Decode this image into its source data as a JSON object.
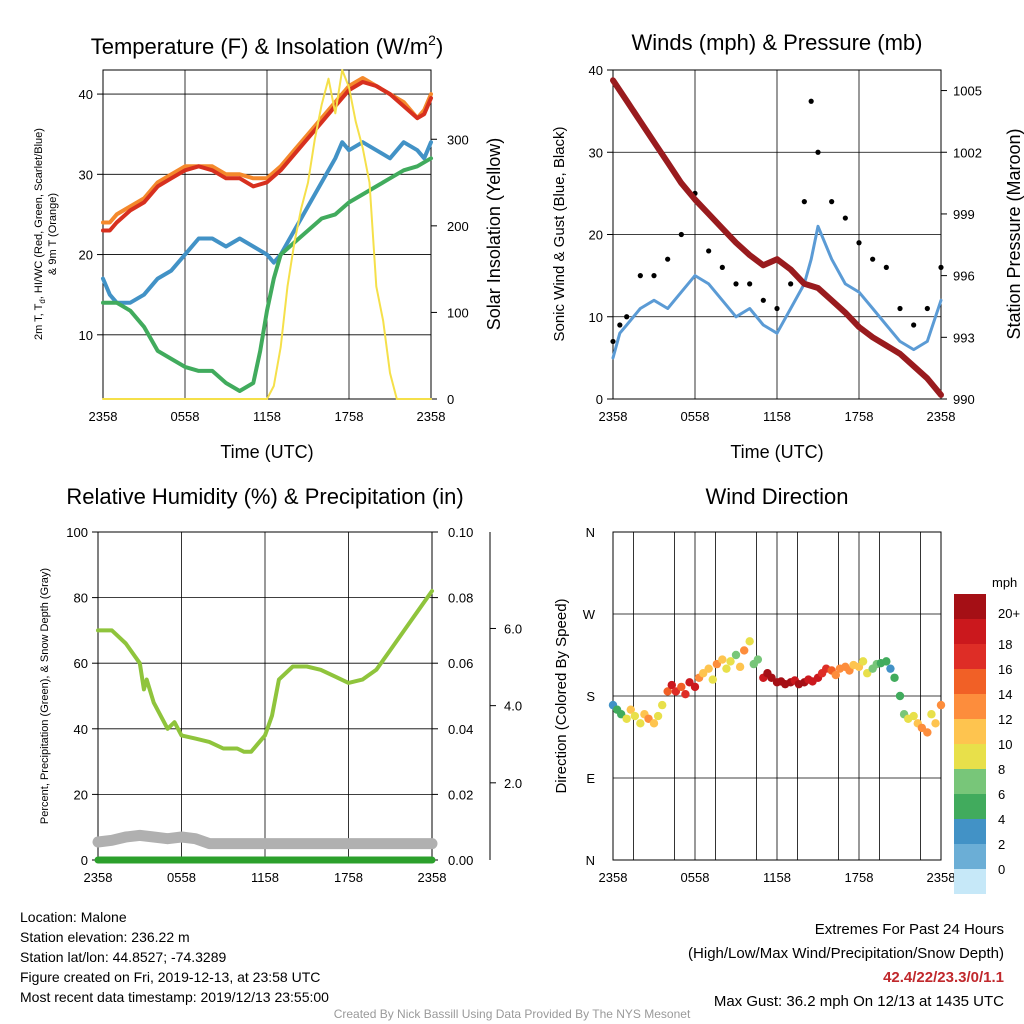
{
  "chart_data": [
    {
      "type": "line",
      "title": "Temperature (F) & Insolation (W/m",
      "title_sup": "2",
      "title_end": ")",
      "xlabel": "Time (UTC)",
      "ylabel": "2m T, T",
      "ylabel_sub": "d",
      "ylabel_rest": ", HI/WC (Red, Green, Scarlet/Blue)",
      "ylabel_line2": "& 9m T (Orange)",
      "ylabel_right": "Solar Insolation (Yellow)",
      "x_ticks": [
        "2358",
        "0558",
        "1158",
        "1758",
        "2358"
      ],
      "y_ticks": [
        "10",
        "20",
        "30",
        "40"
      ],
      "y2_ticks": [
        "0",
        "100",
        "200",
        "300"
      ],
      "ylim": [
        2,
        43
      ],
      "y2lim": [
        0,
        380
      ],
      "xlim": [
        0,
        24
      ],
      "grid": true,
      "series": [
        {
          "name": "9m T",
          "color": "#f4892c",
          "axis": "left",
          "x": [
            0,
            0.5,
            1,
            2,
            3,
            4,
            5,
            6,
            7,
            8,
            9,
            10,
            11,
            12,
            13,
            14,
            15,
            16,
            17,
            18,
            19,
            20,
            21,
            22,
            23,
            23.5,
            24
          ],
          "y": [
            24,
            24,
            25,
            26,
            27,
            29,
            30,
            31,
            31,
            31,
            30,
            30,
            29.5,
            29.5,
            31,
            33,
            35,
            37,
            39,
            41,
            42,
            41,
            40,
            39,
            37,
            38,
            40
          ]
        },
        {
          "name": "2m T",
          "color": "#d7301f",
          "axis": "left",
          "x": [
            0,
            0.5,
            1,
            2,
            3,
            4,
            5,
            6,
            7,
            8,
            9,
            10,
            11,
            12,
            13,
            14,
            15,
            16,
            17,
            18,
            19,
            20,
            21,
            22,
            23,
            23.5,
            24
          ],
          "y": [
            23,
            23,
            24,
            25.5,
            26.5,
            28.5,
            29.5,
            30.5,
            31,
            30.5,
            29.5,
            29.5,
            28.5,
            29,
            30.5,
            32.5,
            34.5,
            36.5,
            38.5,
            40.5,
            41.5,
            41,
            40,
            38.5,
            37,
            37.5,
            39.5
          ]
        },
        {
          "name": "Td",
          "color": "#4292c6",
          "axis": "left",
          "x": [
            0,
            0.5,
            1,
            2,
            3,
            4,
            5,
            6,
            7,
            8,
            9,
            10,
            11,
            12,
            12.5,
            13,
            14,
            15,
            16,
            17,
            17.5,
            18,
            19,
            20,
            21,
            22,
            23,
            23.5,
            24
          ],
          "y": [
            17,
            15,
            14,
            14,
            15,
            17,
            18,
            20,
            22,
            22,
            21,
            22,
            21,
            20,
            19,
            20,
            23,
            26,
            29,
            32,
            34,
            33,
            34,
            33,
            32,
            34,
            33,
            32,
            34
          ]
        },
        {
          "name": "HI/WC",
          "color": "#41ab5d",
          "axis": "left",
          "x": [
            0,
            0.5,
            1,
            2,
            3,
            4,
            5,
            6,
            7,
            8,
            9,
            10,
            10.5,
            11,
            11.5,
            12,
            12.5,
            13,
            14,
            15,
            16,
            17,
            18,
            19,
            20,
            21,
            22,
            23,
            24
          ],
          "y": [
            14,
            14,
            14,
            13,
            11,
            8,
            7,
            6,
            5.5,
            5.5,
            4,
            3,
            3.5,
            4,
            8,
            13,
            17,
            20,
            21.5,
            23,
            24.5,
            25,
            26.5,
            27.5,
            28.5,
            29.5,
            30.5,
            31,
            32
          ]
        },
        {
          "name": "Solar Insolation",
          "color": "#f5e04a",
          "axis": "right",
          "x": [
            0,
            12,
            12.5,
            13,
            13.5,
            14,
            14.5,
            15,
            15.5,
            16,
            16.5,
            17,
            17.5,
            18,
            18.5,
            19,
            19.5,
            20,
            20.5,
            21,
            21.5,
            22,
            24
          ],
          "y": [
            0,
            0,
            15,
            60,
            130,
            180,
            220,
            250,
            300,
            340,
            370,
            330,
            380,
            360,
            320,
            290,
            250,
            130,
            90,
            30,
            0,
            0,
            0
          ]
        }
      ]
    },
    {
      "type": "scatter",
      "title": "Winds (mph) & Pressure (mb)",
      "xlabel": "Time (UTC)",
      "ylabel": "Sonic Wind & Gust (Blue, Black)",
      "ylabel_right": "Station Pressure (Maroon)",
      "x_ticks": [
        "2358",
        "0558",
        "1158",
        "1758",
        "2358"
      ],
      "y_ticks": [
        "0",
        "10",
        "20",
        "30",
        "40"
      ],
      "y2_ticks": [
        "990",
        "993",
        "996",
        "999",
        "1002",
        "1005"
      ],
      "ylim": [
        0,
        40
      ],
      "y2lim": [
        990,
        1006
      ],
      "xlim": [
        0,
        24
      ],
      "grid": true,
      "max_gust": 36.2,
      "series": [
        {
          "name": "Sonic Wind",
          "color": "#5b9bd5",
          "x": [
            0,
            0.5,
            1,
            2,
            3,
            4,
            5,
            6,
            7,
            8,
            9,
            10,
            11,
            12,
            13,
            14,
            14.5,
            15,
            16,
            17,
            18,
            19,
            20,
            21,
            22,
            23,
            24
          ],
          "y": [
            5,
            8,
            9,
            11,
            12,
            11,
            13,
            15,
            14,
            12,
            10,
            11,
            9,
            8,
            11,
            14,
            17,
            21,
            17,
            14,
            13,
            11,
            9,
            7,
            6,
            7,
            12
          ]
        },
        {
          "name": "Gust",
          "color": "#000000",
          "x": [
            0,
            0.5,
            1,
            2,
            3,
            4,
            5,
            6,
            7,
            8,
            9,
            10,
            11,
            12,
            13,
            14,
            14.5,
            15,
            16,
            17,
            18,
            19,
            20,
            21,
            22,
            23,
            24
          ],
          "y": [
            7,
            9,
            10,
            15,
            15,
            17,
            20,
            25,
            18,
            16,
            14,
            14,
            12,
            11,
            14,
            24,
            36.2,
            30,
            24,
            22,
            19,
            17,
            16,
            11,
            9,
            11,
            16
          ]
        },
        {
          "name": "Station Pressure",
          "color": "#991b1e",
          "x": [
            0,
            1,
            2,
            3,
            4,
            5,
            6,
            7,
            8,
            9,
            10,
            11,
            12,
            13,
            14,
            15,
            16,
            17,
            18,
            19,
            20,
            21,
            22,
            23,
            24
          ],
          "y": [
            1005.5,
            1004.5,
            1003.5,
            1002.5,
            1001.5,
            1000.5,
            999.7,
            999,
            998.3,
            997.6,
            997,
            996.5,
            996.8,
            996.3,
            995.6,
            995.4,
            994.8,
            994.2,
            993.5,
            993,
            992.6,
            992.2,
            991.6,
            991,
            990.2
          ]
        }
      ]
    },
    {
      "type": "line",
      "title": "Relative Humidity (%) & Precipitation (in)",
      "ylabel": "Percent, Precipitation (Green), & Snow Depth (Gray)",
      "x_ticks": [
        "2358",
        "0558",
        "1158",
        "1758",
        "2358"
      ],
      "y_ticks": [
        "0",
        "20",
        "40",
        "60",
        "80",
        "100"
      ],
      "y2_ticks": [
        "0.00",
        "0.02",
        "0.04",
        "0.06",
        "0.08",
        "0.10"
      ],
      "y3_ticks": [
        "2.0",
        "4.0",
        "6.0"
      ],
      "ylim": [
        0,
        100
      ],
      "y2lim": [
        0,
        0.1
      ],
      "xlim": [
        0,
        24
      ],
      "grid": true,
      "series": [
        {
          "name": "Relative Humidity",
          "color": "#8fc43c",
          "x": [
            0,
            0.5,
            1,
            2,
            3,
            3.3,
            3.5,
            4,
            5,
            5.5,
            6,
            7,
            8,
            9,
            10,
            10.5,
            11,
            12,
            12.5,
            13,
            14,
            15,
            16,
            17,
            18,
            19,
            20,
            21,
            22,
            23,
            24
          ],
          "y": [
            70,
            70,
            70,
            66,
            60,
            52,
            55,
            48,
            40,
            42,
            38,
            37,
            36,
            34,
            34,
            33,
            33,
            38,
            44,
            55,
            59,
            59,
            58,
            56,
            54,
            55,
            58,
            64,
            70,
            76,
            82
          ]
        },
        {
          "name": "Snow Depth",
          "color": "#b0b0b0",
          "x": [
            0,
            1,
            2,
            3,
            4,
            5,
            6,
            7,
            8,
            24
          ],
          "y": [
            5.5,
            6,
            7,
            7.5,
            7,
            6.5,
            7,
            6.5,
            5,
            5
          ]
        },
        {
          "name": "Precipitation",
          "color": "#2ca02c",
          "x": [
            0,
            24
          ],
          "y": [
            0,
            0
          ]
        }
      ]
    },
    {
      "type": "scatter",
      "title": "Wind Direction",
      "ylabel": "Direction (Colored By Speed)",
      "x_ticks": [
        "2358",
        "0558",
        "1158",
        "1758",
        "2358"
      ],
      "y_ticks": [
        "N",
        "E",
        "S",
        "W",
        "N"
      ],
      "ylim": [
        0,
        360
      ],
      "xlim": [
        0,
        24
      ],
      "grid": true,
      "legend_title": "mph",
      "legend_labels": [
        "20+",
        "18",
        "16",
        "14",
        "12",
        "10",
        "8",
        "6",
        "4",
        "2",
        "0"
      ],
      "legend_colors": [
        "#a50f15",
        "#cb181d",
        "#de2d26",
        "#f16026",
        "#fd8d3c",
        "#fec44f",
        "#e8e04a",
        "#78c679",
        "#41ab5d",
        "#4292c6",
        "#6baed6",
        "#c6e8f8"
      ],
      "x": [
        0,
        0.3,
        0.6,
        1,
        1.3,
        1.6,
        2,
        2.3,
        2.6,
        3,
        3.3,
        3.6,
        4,
        4.3,
        4.6,
        5,
        5.3,
        5.6,
        6,
        6.3,
        6.6,
        7,
        7.3,
        7.6,
        8,
        8.3,
        8.6,
        9,
        9.3,
        9.6,
        10,
        10.3,
        10.6,
        11,
        11.3,
        11.6,
        12,
        12.3,
        12.6,
        13,
        13.3,
        13.6,
        14,
        14.3,
        14.6,
        15,
        15.3,
        15.6,
        16,
        16.3,
        16.6,
        17,
        17.3,
        17.6,
        18,
        18.3,
        18.6,
        19,
        19.3,
        19.6,
        20,
        20.3,
        20.6,
        21,
        21.3,
        21.6,
        22,
        22.3,
        22.6,
        23,
        23.3,
        23.6,
        24
      ],
      "y": [
        170,
        165,
        160,
        155,
        165,
        158,
        150,
        160,
        155,
        150,
        158,
        170,
        185,
        192,
        185,
        190,
        182,
        195,
        190,
        200,
        205,
        210,
        198,
        215,
        220,
        210,
        218,
        225,
        212,
        230,
        240,
        215,
        220,
        200,
        205,
        200,
        195,
        196,
        193,
        195,
        197,
        193,
        195,
        198,
        196,
        200,
        205,
        210,
        208,
        203,
        210,
        212,
        208,
        214,
        212,
        218,
        205,
        210,
        215,
        216,
        218,
        210,
        200,
        180,
        160,
        155,
        158,
        150,
        145,
        140,
        160,
        150,
        170
      ],
      "speed": [
        3,
        4,
        5,
        8,
        11,
        9,
        8,
        10,
        12,
        11,
        8,
        9,
        14,
        18,
        16,
        15,
        17,
        19,
        18,
        12,
        11,
        10,
        8,
        12,
        10,
        9,
        8,
        7,
        10,
        12,
        8,
        6,
        7,
        18,
        20,
        22,
        21,
        20,
        21,
        20,
        19,
        21,
        22,
        18,
        19,
        18,
        17,
        16,
        14,
        13,
        12,
        13,
        12,
        11,
        10,
        9,
        8,
        7,
        6,
        5,
        4,
        3,
        4,
        5,
        6,
        8,
        9,
        10,
        12,
        13,
        8,
        10,
        12
      ]
    }
  ],
  "info": {
    "location": "Location: Malone",
    "elevation": "Station elevation: 236.22 m",
    "latlon": "Station lat/lon: 44.8527; -74.3289",
    "created": "Figure created on Fri, 2019-12-13, at 23:58 UTC",
    "recent": "Most recent data timestamp: 2019/12/13 23:55:00"
  },
  "extremes": {
    "title": "Extremes For Past 24 Hours",
    "subtitle": "(High/Low/Max Wind/Precipitation/Snow Depth)",
    "values": "42.4/22/23.3/0/1.1",
    "max_gust": "Max Gust: 36.2 mph On 12/13 at 1435 UTC"
  },
  "credit": "Created By Nick Bassill Using Data Provided By The NYS Mesonet"
}
